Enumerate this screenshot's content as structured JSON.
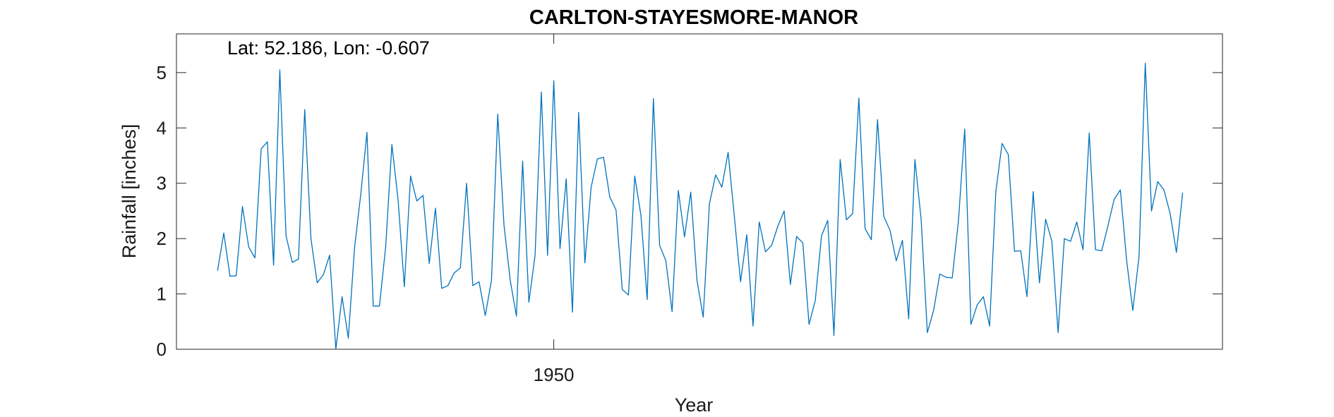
{
  "chart_data": {
    "type": "line",
    "title": "CARLTON-STAYESMORE-MANOR",
    "annotation": "Lat: 52.186, Lon: -0.607",
    "xlabel": "Year",
    "ylabel": "Rainfall [inches]",
    "xlim": [
      1919.7,
      2003.7
    ],
    "ylim": [
      0,
      5.7
    ],
    "x_ticks": [
      1950
    ],
    "y_ticks": [
      0,
      1,
      2,
      3,
      4,
      5
    ],
    "grid": false,
    "line_color": "#0072BD",
    "series": [
      {
        "x_start": 1923,
        "x_step": 0.5,
        "values": [
          1.42,
          2.1,
          1.32,
          1.33,
          2.58,
          1.85,
          1.65,
          3.62,
          3.75,
          1.52,
          5.05,
          2.05,
          1.57,
          1.63,
          4.33,
          2.0,
          1.2,
          1.35,
          1.7,
          0.0,
          0.95,
          0.2,
          1.83,
          2.8,
          3.92,
          0.78,
          0.78,
          1.85,
          3.7,
          2.7,
          1.13,
          3.13,
          2.68,
          2.78,
          1.55,
          2.55,
          1.1,
          1.15,
          1.38,
          1.47,
          3.0,
          1.15,
          1.22,
          0.61,
          1.25,
          4.25,
          2.25,
          1.25,
          0.6,
          3.4,
          0.85,
          1.7,
          4.65,
          1.7,
          4.85,
          1.82,
          3.08,
          0.67,
          4.28,
          1.56,
          2.93,
          3.44,
          3.47,
          2.75,
          2.52,
          1.08,
          0.98,
          3.13,
          2.42,
          0.9,
          4.53,
          1.88,
          1.6,
          0.68,
          2.87,
          2.03,
          2.84,
          1.25,
          0.58,
          2.63,
          3.15,
          2.93,
          3.56,
          2.4,
          1.22,
          2.07,
          0.42,
          2.3,
          1.76,
          1.88,
          2.23,
          2.5,
          1.17,
          2.04,
          1.92,
          0.45,
          0.88,
          2.05,
          2.33,
          0.25,
          3.43,
          2.34,
          2.45,
          4.54,
          2.18,
          1.98,
          4.15,
          2.4,
          2.15,
          1.6,
          1.97,
          0.55,
          3.43,
          2.35,
          0.3,
          0.7,
          1.36,
          1.3,
          1.29,
          2.33,
          3.98,
          0.45,
          0.8,
          0.95,
          0.42,
          2.85,
          3.72,
          3.52,
          1.77,
          1.78,
          0.95,
          2.85,
          1.2,
          2.35,
          1.95,
          0.3,
          2.0,
          1.95,
          2.3,
          1.8,
          3.91,
          1.8,
          1.78,
          2.23,
          2.71,
          2.88,
          1.61,
          0.7,
          1.68,
          5.17,
          2.5,
          3.03,
          2.88,
          2.45,
          1.75,
          2.83
        ]
      }
    ]
  }
}
